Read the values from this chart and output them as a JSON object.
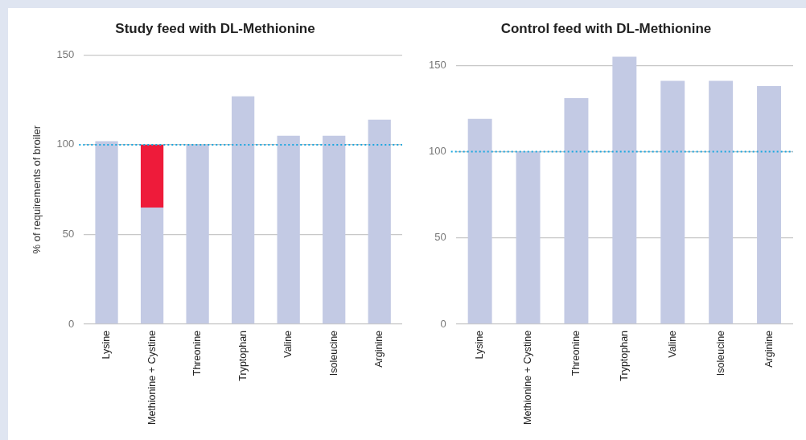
{
  "chart_data": [
    {
      "type": "bar",
      "title": "Study feed with DL-Methionine",
      "ylabel": "% of requirements of broiler",
      "categories": [
        "Lysine",
        "Methionine + Cystine",
        "Threonine",
        "Tryptophan",
        "Valine",
        "Isoleucine",
        "Arginine"
      ],
      "stacked": true,
      "series": [
        {
          "color": "#c3cae4",
          "values": [
            102,
            65,
            100,
            127,
            105,
            105,
            114
          ]
        },
        {
          "color": "#ee1b3a",
          "values": [
            null,
            35,
            null,
            null,
            null,
            null,
            null
          ]
        }
      ],
      "ylim": [
        0,
        150
      ],
      "yticks": [
        0,
        50,
        100,
        150
      ],
      "grid": "y",
      "ref_lines": [
        {
          "axis": "y",
          "value": 100,
          "color": "#1aa7e0",
          "line_style": "dotted"
        }
      ]
    },
    {
      "type": "bar",
      "title": "Control feed with DL-Methionine",
      "categories": [
        "Lysine",
        "Methionine + Cystine",
        "Threonine",
        "Tryptophan",
        "Valine",
        "Isoleucine",
        "Arginine"
      ],
      "values": [
        119,
        100,
        131,
        155,
        141,
        141,
        138
      ],
      "color": "#c3cae4",
      "ylim": [
        0,
        156
      ],
      "yticks": [
        0,
        50,
        100,
        150
      ],
      "grid": "y",
      "ref_lines": [
        {
          "axis": "y",
          "value": 100,
          "color": "#1aa7e0",
          "line_style": "dotted"
        }
      ]
    }
  ]
}
